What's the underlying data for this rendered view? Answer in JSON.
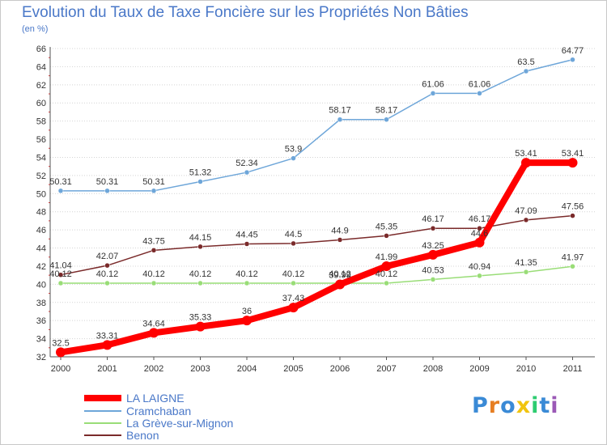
{
  "title": "Evolution du Taux de Taxe Foncière sur les Propriétés Non Bâties",
  "unit": "(en %)",
  "logo": {
    "letters": [
      "P",
      "r",
      "o",
      "x",
      "i",
      "t",
      "i"
    ],
    "colors": [
      "#3a8ad6",
      "#e67e22",
      "#3a8ad6",
      "#f1c40f",
      "#2ecc71",
      "#3a8ad6",
      "#9b59b6"
    ]
  },
  "chart_data": {
    "type": "line",
    "title": "Evolution du Taux de Taxe Foncière sur les Propriétés Non Bâties",
    "ylabel": "(en %)",
    "xlabel": "",
    "categories": [
      "2000",
      "2001",
      "2002",
      "2003",
      "2004",
      "2005",
      "2006",
      "2007",
      "2008",
      "2009",
      "2010",
      "2011"
    ],
    "ylim": [
      32,
      66
    ],
    "yticks": [
      32,
      34,
      36,
      38,
      40,
      42,
      44,
      46,
      48,
      50,
      52,
      54,
      56,
      58,
      60,
      62,
      64,
      66
    ],
    "grid": "horizontal",
    "legend_position": "bottom-left",
    "series": [
      {
        "name": "LA LAIGNE",
        "color": "#ff0000",
        "values": [
          32.5,
          33.31,
          34.64,
          35.33,
          36,
          37.43,
          39.99,
          41.99,
          43.25,
          44.6,
          53.41,
          53.41
        ],
        "labels": [
          "32.5",
          "33.31",
          "34.64",
          "35.33",
          "36",
          "37.43",
          "39.99",
          "41.99",
          "43.25",
          "44.6",
          "53.41",
          "53.41"
        ]
      },
      {
        "name": "Cramchaban",
        "color": "#6ea6d9",
        "values": [
          50.31,
          50.31,
          50.31,
          51.32,
          52.34,
          53.9,
          58.17,
          58.17,
          61.06,
          61.06,
          63.5,
          64.77
        ],
        "labels": [
          "50.31",
          "50.31",
          "50.31",
          "51.32",
          "52.34",
          "53.9",
          "58.17",
          "58.17",
          "61.06",
          "61.06",
          "63.5",
          "64.77"
        ]
      },
      {
        "name": "La Grève-sur-Mignon",
        "color": "#99dd77",
        "values": [
          40.12,
          40.12,
          40.12,
          40.12,
          40.12,
          40.12,
          40.12,
          40.12,
          40.53,
          40.94,
          41.35,
          41.97
        ],
        "labels": [
          "40.12",
          "40.12",
          "40.12",
          "40.12",
          "40.12",
          "40.12",
          "40.12",
          "40.12",
          "40.53",
          "40.94",
          "41.35",
          "41.97"
        ]
      },
      {
        "name": "Benon",
        "color": "#7a2a2a",
        "values": [
          41.04,
          42.07,
          43.75,
          44.15,
          44.45,
          44.5,
          44.9,
          45.35,
          46.17,
          46.17,
          47.09,
          47.56
        ],
        "labels": [
          "41.04",
          "42.07",
          "43.75",
          "44.15",
          "44.45",
          "44.5",
          "44.9",
          "45.35",
          "46.17",
          "46.17",
          "47.09",
          "47.56"
        ]
      }
    ]
  }
}
